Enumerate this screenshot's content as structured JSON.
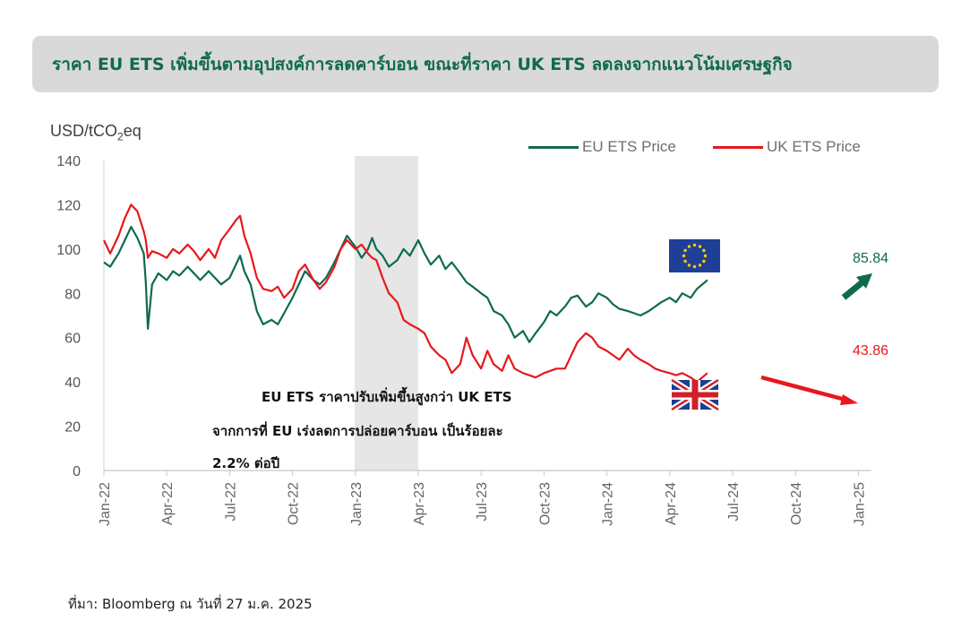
{
  "title": "ราคา EU ETS เพิ่มขึ้นตามอุปสงค์การลดคาร์บอน ขณะที่ราคา UK ETS ลดลงจากแนวโน้มเศรษฐกิจ",
  "unit_label": "USD/tCO",
  "unit_sub": "2",
  "unit_suffix": "eq",
  "source": "ที่มา: Bloomberg ณ วันที่ 27 ม.ค. 2025",
  "annotation": {
    "line1": "EU ETS ราคาปรับเพิ่มขึ้นสูงกว่า UK ETS",
    "line2": "จากการที่ EU เร่งลดการปล่อยคาร์บอน เป็นร้อยละ",
    "line3": "2.2% ต่อปี"
  },
  "icons": {
    "eu_flag": "eu-flag-icon",
    "uk_flag": "uk-flag-icon",
    "eu_arrow": "up-arrow-icon",
    "uk_arrow": "down-arrow-icon"
  },
  "chart_data": {
    "type": "line",
    "ylabel": "USD/tCO2eq",
    "ylim": [
      0,
      140
    ],
    "yticks": [
      "0",
      "20",
      "40",
      "60",
      "80",
      "100",
      "120",
      "140"
    ],
    "xticks": [
      "Jan-22",
      "Apr-22",
      "Jul-22",
      "Oct-22",
      "Jan-23",
      "Apr-23",
      "Jul-23",
      "Oct-23",
      "Jan-24",
      "Apr-24",
      "Jul-24",
      "Oct-24",
      "Jan-25"
    ],
    "shaded_range": [
      "Jan-23",
      "Apr-23"
    ],
    "legend_position": "top-right",
    "colors": {
      "eu": "#0f6a4f",
      "uk": "#e8171b",
      "shade": "#e6e6e6"
    },
    "series": [
      {
        "name": "EU ETS Price",
        "last_label": "85.84",
        "points": [
          [
            0,
            94
          ],
          [
            0.3,
            92
          ],
          [
            0.7,
            98
          ],
          [
            1.0,
            104
          ],
          [
            1.3,
            110
          ],
          [
            1.6,
            105
          ],
          [
            1.9,
            98
          ],
          [
            2.0,
            85
          ],
          [
            2.1,
            64
          ],
          [
            2.3,
            84
          ],
          [
            2.6,
            89
          ],
          [
            3.0,
            86
          ],
          [
            3.3,
            90
          ],
          [
            3.6,
            88
          ],
          [
            4.0,
            92
          ],
          [
            4.3,
            89
          ],
          [
            4.6,
            86
          ],
          [
            5.0,
            90
          ],
          [
            5.3,
            87
          ],
          [
            5.6,
            84
          ],
          [
            6.0,
            87
          ],
          [
            6.3,
            93
          ],
          [
            6.5,
            97
          ],
          [
            6.7,
            90
          ],
          [
            7.0,
            84
          ],
          [
            7.3,
            72
          ],
          [
            7.6,
            66
          ],
          [
            8.0,
            68
          ],
          [
            8.3,
            66
          ],
          [
            8.6,
            71
          ],
          [
            9.0,
            78
          ],
          [
            9.3,
            84
          ],
          [
            9.6,
            90
          ],
          [
            10.0,
            86
          ],
          [
            10.3,
            84
          ],
          [
            10.6,
            87
          ],
          [
            11.0,
            94
          ],
          [
            11.3,
            100
          ],
          [
            11.6,
            106
          ],
          [
            12.0,
            101
          ],
          [
            12.3,
            96
          ],
          [
            12.6,
            100
          ],
          [
            12.8,
            105
          ],
          [
            13.0,
            100
          ],
          [
            13.3,
            97
          ],
          [
            13.6,
            92
          ],
          [
            14.0,
            95
          ],
          [
            14.3,
            100
          ],
          [
            14.6,
            97
          ],
          [
            15.0,
            104
          ],
          [
            15.3,
            98
          ],
          [
            15.6,
            93
          ],
          [
            16.0,
            97
          ],
          [
            16.3,
            91
          ],
          [
            16.6,
            94
          ],
          [
            17.0,
            89
          ],
          [
            17.3,
            85
          ],
          [
            17.6,
            83
          ],
          [
            18.0,
            80
          ],
          [
            18.3,
            78
          ],
          [
            18.6,
            72
          ],
          [
            19.0,
            70
          ],
          [
            19.3,
            66
          ],
          [
            19.6,
            60
          ],
          [
            20.0,
            63
          ],
          [
            20.3,
            58
          ],
          [
            20.6,
            62
          ],
          [
            21.0,
            67
          ],
          [
            21.3,
            72
          ],
          [
            21.6,
            70
          ],
          [
            22.0,
            74
          ],
          [
            22.3,
            78
          ],
          [
            22.6,
            79
          ],
          [
            23.0,
            74
          ],
          [
            23.3,
            76
          ],
          [
            23.6,
            80
          ],
          [
            24.0,
            78
          ],
          [
            24.3,
            75
          ],
          [
            24.6,
            73
          ],
          [
            25.0,
            72
          ],
          [
            25.3,
            71
          ],
          [
            25.6,
            70
          ],
          [
            26.0,
            72
          ],
          [
            26.3,
            74
          ],
          [
            26.6,
            76
          ],
          [
            27.0,
            78
          ],
          [
            27.3,
            76
          ],
          [
            27.6,
            80
          ],
          [
            28.0,
            78
          ],
          [
            28.3,
            82
          ],
          [
            28.8,
            86
          ]
        ]
      },
      {
        "name": "UK ETS Price",
        "last_label": "43.86",
        "points": [
          [
            0,
            104
          ],
          [
            0.3,
            98
          ],
          [
            0.7,
            106
          ],
          [
            1.0,
            114
          ],
          [
            1.3,
            120
          ],
          [
            1.6,
            117
          ],
          [
            1.9,
            108
          ],
          [
            2.0,
            104
          ],
          [
            2.1,
            96
          ],
          [
            2.3,
            99
          ],
          [
            2.6,
            98
          ],
          [
            3.0,
            96
          ],
          [
            3.3,
            100
          ],
          [
            3.6,
            98
          ],
          [
            4.0,
            102
          ],
          [
            4.3,
            99
          ],
          [
            4.6,
            95
          ],
          [
            5.0,
            100
          ],
          [
            5.3,
            96
          ],
          [
            5.6,
            104
          ],
          [
            6.0,
            109
          ],
          [
            6.3,
            113
          ],
          [
            6.5,
            115
          ],
          [
            6.7,
            106
          ],
          [
            7.0,
            98
          ],
          [
            7.3,
            87
          ],
          [
            7.6,
            82
          ],
          [
            8.0,
            81
          ],
          [
            8.3,
            83
          ],
          [
            8.6,
            78
          ],
          [
            9.0,
            82
          ],
          [
            9.3,
            90
          ],
          [
            9.6,
            93
          ],
          [
            10.0,
            86
          ],
          [
            10.3,
            82
          ],
          [
            10.6,
            85
          ],
          [
            11.0,
            92
          ],
          [
            11.3,
            100
          ],
          [
            11.6,
            104
          ],
          [
            12.0,
            100
          ],
          [
            12.3,
            102
          ],
          [
            12.6,
            98
          ],
          [
            12.8,
            96
          ],
          [
            13.0,
            95
          ],
          [
            13.3,
            87
          ],
          [
            13.6,
            80
          ],
          [
            14.0,
            76
          ],
          [
            14.3,
            68
          ],
          [
            14.6,
            66
          ],
          [
            15.0,
            64
          ],
          [
            15.3,
            62
          ],
          [
            15.6,
            56
          ],
          [
            16.0,
            52
          ],
          [
            16.3,
            50
          ],
          [
            16.6,
            44
          ],
          [
            17.0,
            48
          ],
          [
            17.3,
            60
          ],
          [
            17.6,
            52
          ],
          [
            18.0,
            46
          ],
          [
            18.3,
            54
          ],
          [
            18.6,
            48
          ],
          [
            19.0,
            45
          ],
          [
            19.3,
            52
          ],
          [
            19.6,
            46
          ],
          [
            20.0,
            44
          ],
          [
            20.3,
            43
          ],
          [
            20.6,
            42
          ],
          [
            21.0,
            44
          ],
          [
            21.3,
            45
          ],
          [
            21.6,
            46
          ],
          [
            22.0,
            46
          ],
          [
            22.3,
            52
          ],
          [
            22.6,
            58
          ],
          [
            23.0,
            62
          ],
          [
            23.3,
            60
          ],
          [
            23.6,
            56
          ],
          [
            24.0,
            54
          ],
          [
            24.3,
            52
          ],
          [
            24.6,
            50
          ],
          [
            25.0,
            55
          ],
          [
            25.3,
            52
          ],
          [
            25.6,
            50
          ],
          [
            26.0,
            48
          ],
          [
            26.3,
            46
          ],
          [
            26.6,
            45
          ],
          [
            27.0,
            44
          ],
          [
            27.3,
            43
          ],
          [
            27.6,
            44
          ],
          [
            28.0,
            42
          ],
          [
            28.3,
            40
          ],
          [
            28.8,
            44
          ]
        ]
      }
    ]
  }
}
